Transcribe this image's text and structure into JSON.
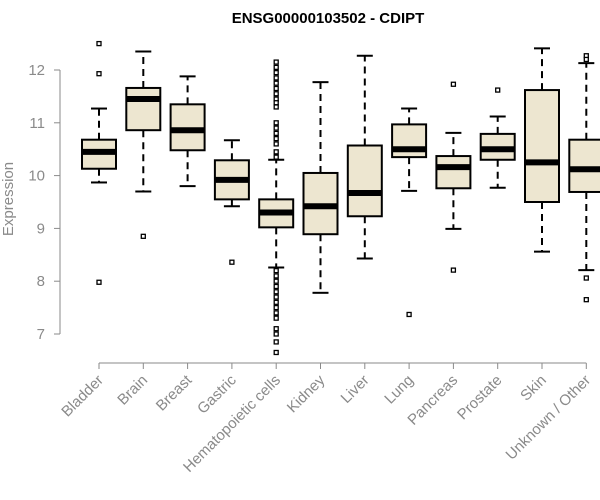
{
  "chart_data": {
    "type": "boxplot",
    "title": "ENSG00000103502 - CDIPT",
    "xlabel": "",
    "ylabel": "Expression",
    "ylim": [
      6.5,
      12.8
    ],
    "yticks": [
      7,
      8,
      9,
      10,
      11,
      12
    ],
    "box_fill": "#ede6d0",
    "categories": [
      "Bladder",
      "Brain",
      "Breast",
      "Gastric",
      "Hematopoietic cells",
      "Kidney",
      "Liver",
      "Lung",
      "Pancreas",
      "Prostate",
      "Skin",
      "Unknown / Other"
    ],
    "series": [
      {
        "name": "Bladder",
        "whisker_low": 9.87,
        "q1": 10.13,
        "median": 10.45,
        "q3": 10.68,
        "whisker_high": 11.27,
        "outliers": [
          12.5,
          11.93,
          7.98
        ]
      },
      {
        "name": "Brain",
        "whisker_low": 9.7,
        "q1": 10.86,
        "median": 11.45,
        "q3": 11.66,
        "whisker_high": 12.35,
        "outliers": [
          8.85
        ]
      },
      {
        "name": "Breast",
        "whisker_low": 9.8,
        "q1": 10.48,
        "median": 10.86,
        "q3": 11.35,
        "whisker_high": 11.88,
        "outliers": []
      },
      {
        "name": "Gastric",
        "whisker_low": 9.42,
        "q1": 9.55,
        "median": 9.92,
        "q3": 10.29,
        "whisker_high": 10.67,
        "outliers": [
          8.36
        ]
      },
      {
        "name": "Hematopoietic cells",
        "whisker_low": 8.26,
        "q1": 9.02,
        "median": 9.3,
        "q3": 9.55,
        "whisker_high": 10.3,
        "outliers": [
          12.15,
          12.05,
          11.95,
          11.85,
          11.75,
          11.65,
          11.55,
          11.45,
          11.38,
          11.3,
          11.0,
          10.9,
          10.8,
          10.7,
          10.6,
          10.45,
          10.35,
          8.2,
          8.1,
          8.0,
          7.9,
          7.8,
          7.7,
          7.6,
          7.5,
          7.4,
          7.3,
          7.1,
          7.0,
          6.85,
          6.65
        ]
      },
      {
        "name": "Kidney",
        "whisker_low": 7.78,
        "q1": 8.89,
        "median": 9.42,
        "q3": 10.05,
        "whisker_high": 11.77,
        "outliers": []
      },
      {
        "name": "Liver",
        "whisker_low": 8.43,
        "q1": 9.23,
        "median": 9.67,
        "q3": 10.57,
        "whisker_high": 12.27,
        "outliers": []
      },
      {
        "name": "Lung",
        "whisker_low": 9.71,
        "q1": 10.35,
        "median": 10.5,
        "q3": 10.97,
        "whisker_high": 11.27,
        "outliers": [
          7.37
        ]
      },
      {
        "name": "Pancreas",
        "whisker_low": 8.99,
        "q1": 9.76,
        "median": 10.16,
        "q3": 10.37,
        "whisker_high": 10.81,
        "outliers": [
          11.73,
          8.21
        ]
      },
      {
        "name": "Prostate",
        "whisker_low": 9.77,
        "q1": 10.3,
        "median": 10.5,
        "q3": 10.79,
        "whisker_high": 11.12,
        "outliers": [
          11.62
        ]
      },
      {
        "name": "Skin",
        "whisker_low": 8.56,
        "q1": 9.5,
        "median": 10.25,
        "q3": 11.62,
        "whisker_high": 12.41,
        "outliers": []
      },
      {
        "name": "Unknown / Other",
        "whisker_low": 8.21,
        "q1": 9.69,
        "median": 10.12,
        "q3": 10.68,
        "whisker_high": 12.13,
        "outliers": [
          12.27,
          12.2,
          8.06,
          7.65
        ]
      }
    ]
  }
}
